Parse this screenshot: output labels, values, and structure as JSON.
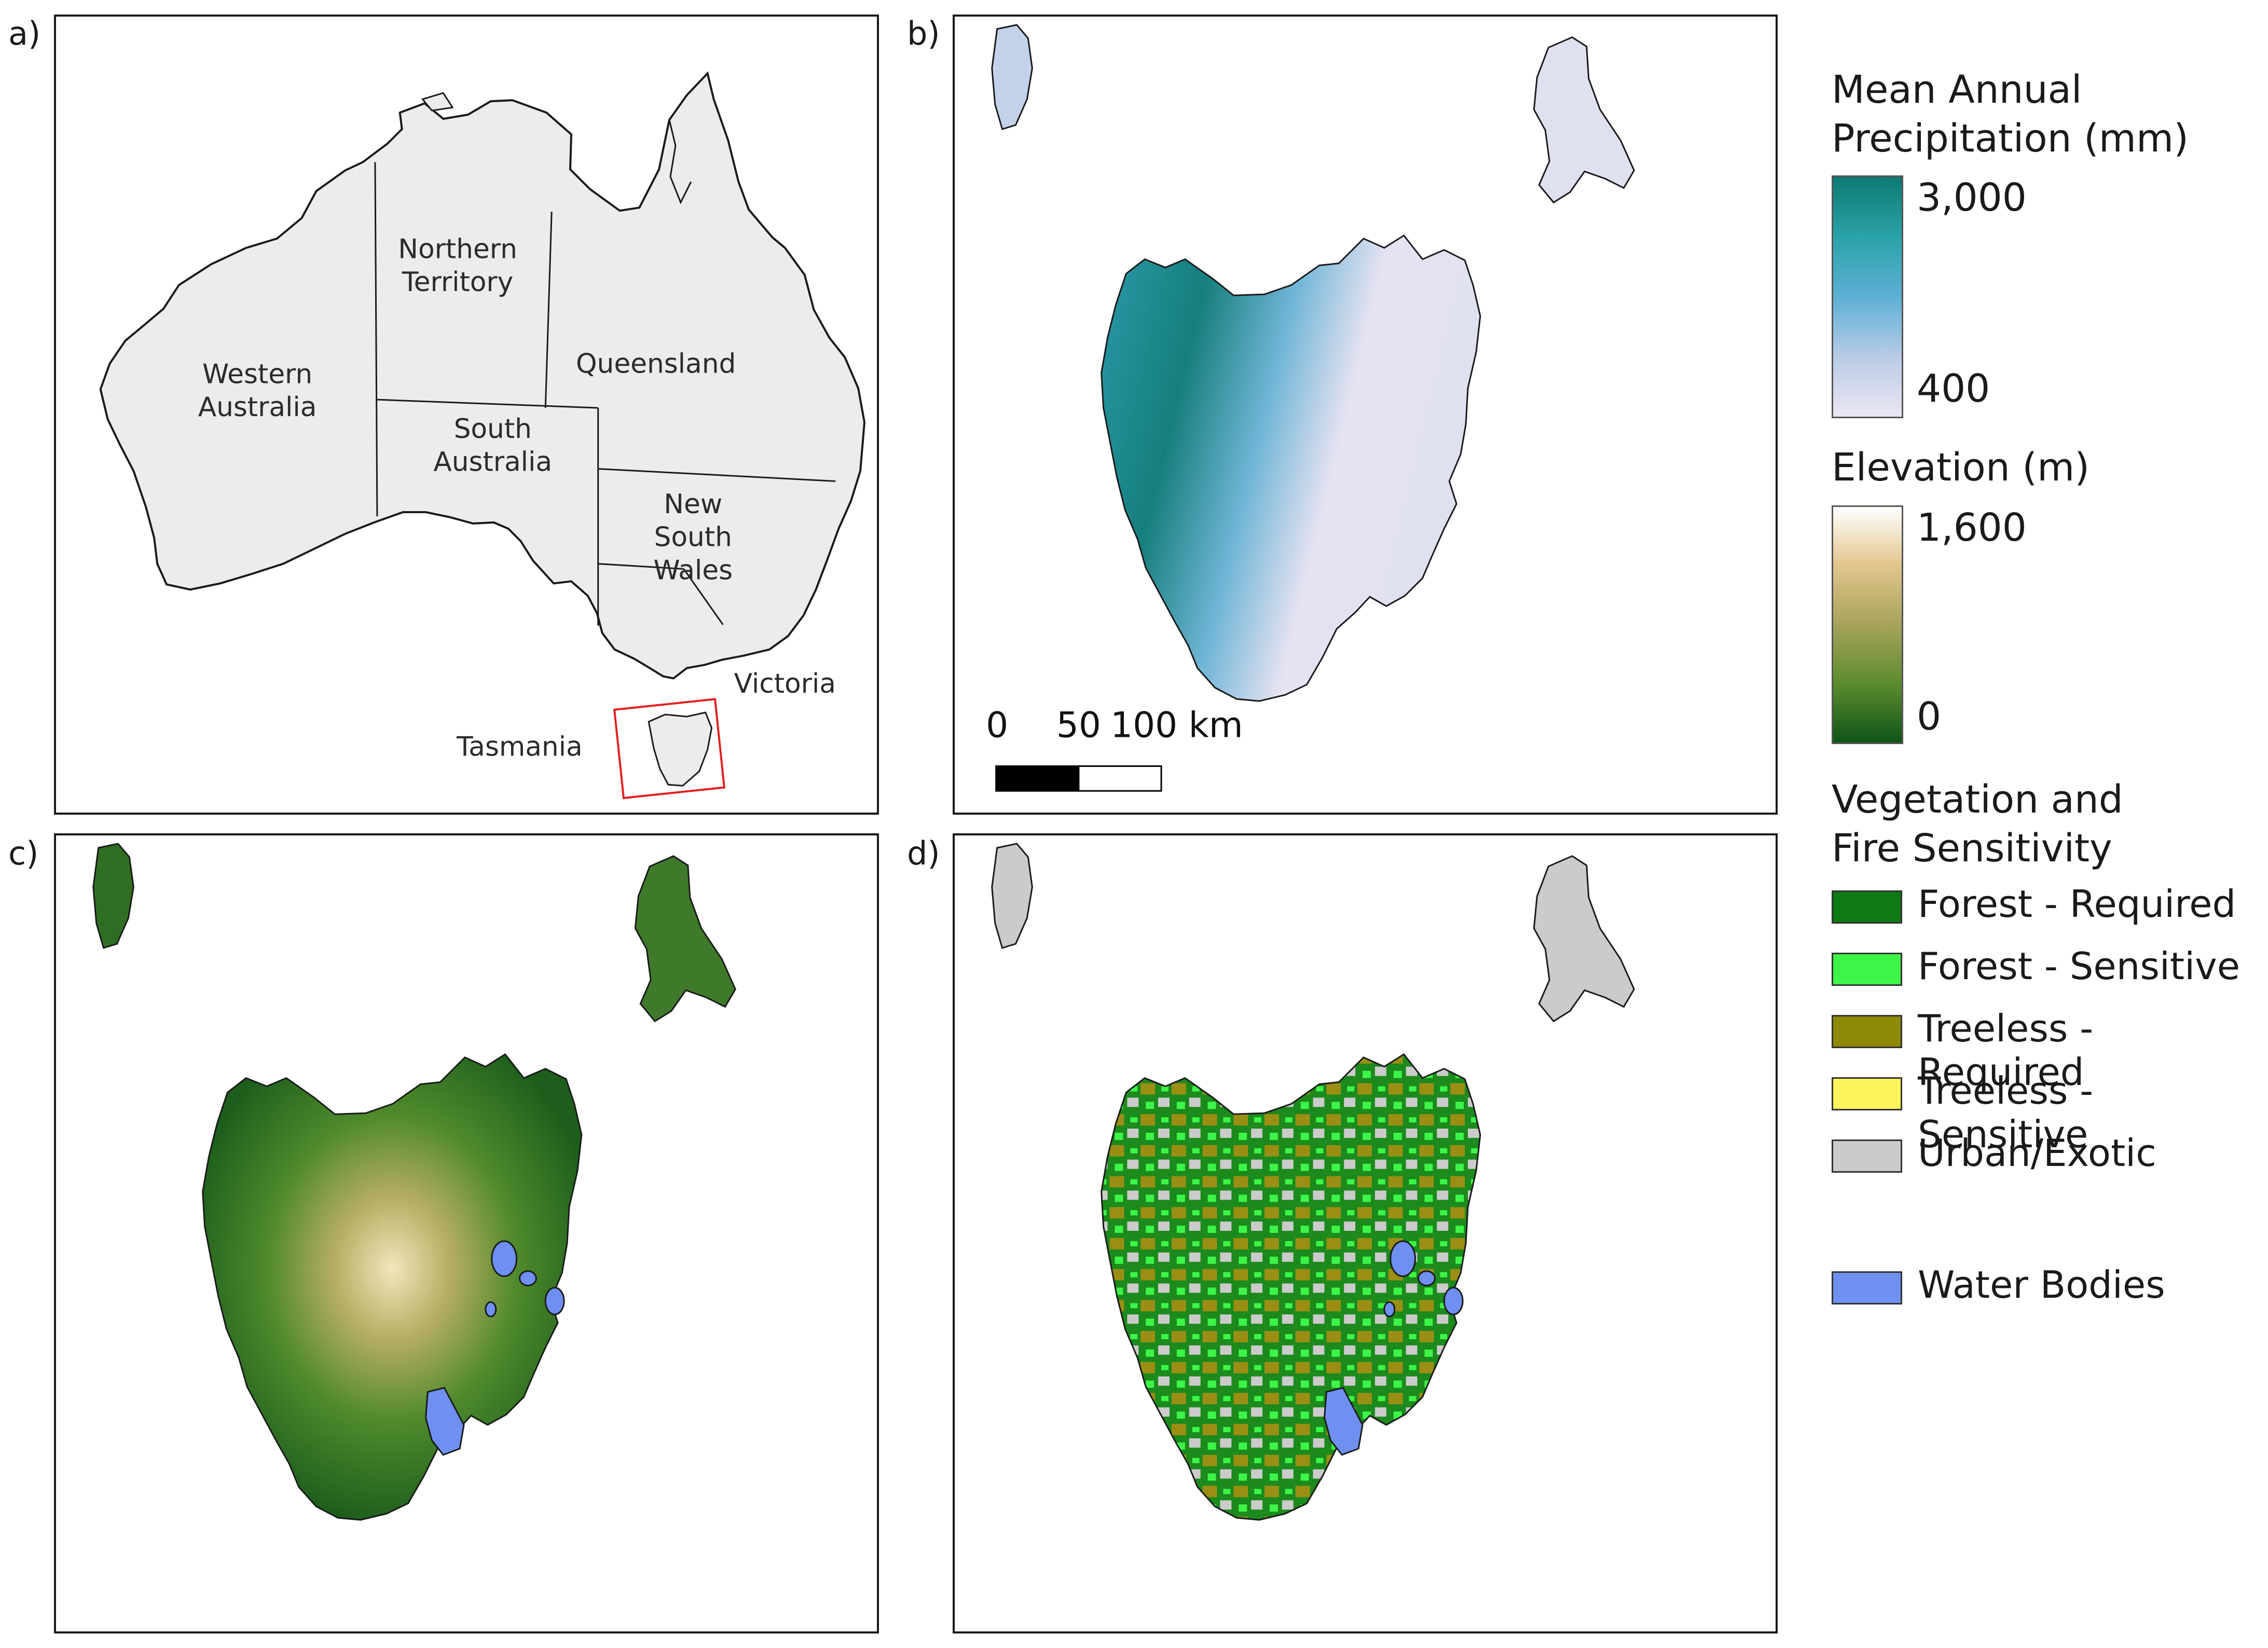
{
  "panels": {
    "a": {
      "letter": "a)"
    },
    "b": {
      "letter": "b)"
    },
    "c": {
      "letter": "c)"
    },
    "d": {
      "letter": "d)"
    }
  },
  "states": {
    "western_australia": [
      "Western",
      "Australia"
    ],
    "northern_territory": [
      "Northern",
      "Territory"
    ],
    "queensland": [
      "Queensland"
    ],
    "south_australia": [
      "South",
      "Australia"
    ],
    "new_south_wales": [
      "New",
      "South",
      "Wales"
    ],
    "victoria": "Victoria",
    "tasmania": "Tasmania"
  },
  "scale_bar": {
    "tick_0": "0",
    "tick_50": "50",
    "tick_100": "100 km"
  },
  "legend": {
    "precipitation": {
      "title_line1": "Mean Annual",
      "title_line2": "Precipitation (mm)",
      "max": "3,000",
      "min": "400",
      "colors": [
        "#0d7a72",
        "#2aa3a8",
        "#5cb0d5",
        "#b9cbe6",
        "#ebe6f3"
      ]
    },
    "elevation": {
      "title": "Elevation (m)",
      "max": "1,600",
      "min": "0",
      "colors": [
        "#ffffff",
        "#e2c58c",
        "#a7a35b",
        "#5c8c2e",
        "#0f5418"
      ]
    },
    "vegetation": {
      "title_line1": "Vegetation and",
      "title_line2": "Fire Sensitivity",
      "items": [
        {
          "label": "Forest - Required",
          "color": "#0e7a12"
        },
        {
          "label": "Forest - Sensitive",
          "color": "#3df548"
        },
        {
          "label": "Treeless - Required",
          "color": "#8e8a05"
        },
        {
          "label": "Treeless - Sensitive",
          "color": "#fcf55a"
        },
        {
          "label": "Urban/Exotic",
          "color": "#cbcbcb"
        }
      ]
    },
    "water": {
      "label": "Water Bodies",
      "color": "#6f90f0"
    }
  }
}
